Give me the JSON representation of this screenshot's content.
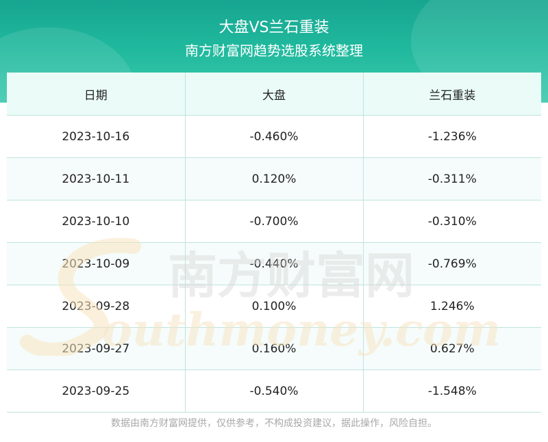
{
  "header": {
    "title": "大盘VS兰石重装",
    "subtitle": "南方财富网趋势选股系统整理"
  },
  "chart_data": {
    "type": "table",
    "columns": [
      "日期",
      "大盘",
      "兰石重装"
    ],
    "rows": [
      [
        "2023-10-16",
        "-0.460%",
        "-1.236%"
      ],
      [
        "2023-10-11",
        "0.120%",
        "-0.311%"
      ],
      [
        "2023-10-10",
        "-0.700%",
        "-0.310%"
      ],
      [
        "2023-10-09",
        "-0.440%",
        "-0.769%"
      ],
      [
        "2023-09-28",
        "0.100%",
        "1.246%"
      ],
      [
        "2023-09-27",
        "0.160%",
        "0.627%"
      ],
      [
        "2023-09-25",
        "-0.540%",
        "-1.548%"
      ]
    ]
  },
  "watermark": {
    "cn": "南方财富网",
    "en": "outhmoney.com"
  },
  "footer": {
    "disclaimer": "数据由南方财富网提供，仅供参考，不构成投资建议，据此操作，风险自担。"
  },
  "colors": {
    "header": "#1fb89d",
    "header_row": "#eafbf8",
    "border": "#bfe3dc",
    "footer_text": "#a8a8a8"
  }
}
